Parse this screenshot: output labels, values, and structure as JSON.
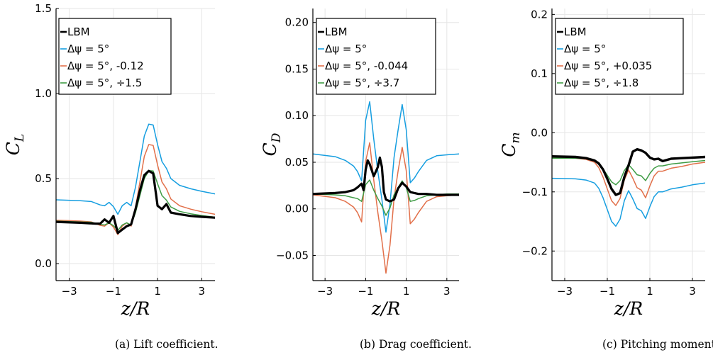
{
  "colors": {
    "LBM": "#000000",
    "blue": "#169ee0",
    "orange": "#e2704a",
    "green": "#3f9c45"
  },
  "legend": {
    "lbm": "LBM",
    "dpsi": "Δψ = 5°"
  },
  "chart_data": [
    {
      "type": "line",
      "caption": "(a) Lift coefficient.",
      "xlabel": "z/R",
      "ylabel": "C_L",
      "xlim": [
        -3.6,
        3.6
      ],
      "ylim": [
        -0.1,
        1.5
      ],
      "xticks": [
        -3,
        -1,
        1,
        3
      ],
      "yticks": [
        0.0,
        0.5,
        1.0,
        1.5
      ],
      "ytick_labels": [
        "0.0",
        "0.5",
        "1.0",
        "1.5"
      ],
      "grid": true,
      "legend_position": "top-left",
      "series": [
        {
          "name": "LBM",
          "color": "#000000",
          "suffix": "",
          "x": [
            -3.6,
            -2.5,
            -1.8,
            -1.6,
            -1.4,
            -1.2,
            -1.0,
            -0.8,
            -0.6,
            -0.4,
            -0.2,
            0.0,
            0.2,
            0.4,
            0.6,
            0.8,
            1.0,
            1.2,
            1.4,
            1.6,
            2.0,
            2.5,
            3.0,
            3.6
          ],
          "y": [
            0.245,
            0.24,
            0.235,
            0.235,
            0.26,
            0.24,
            0.28,
            0.18,
            0.2,
            0.22,
            0.23,
            0.32,
            0.43,
            0.52,
            0.545,
            0.53,
            0.34,
            0.32,
            0.35,
            0.3,
            0.29,
            0.28,
            0.275,
            0.27
          ]
        },
        {
          "name": "Δψ = 5°",
          "color": "#169ee0",
          "suffix": "",
          "x": [
            -3.6,
            -2.5,
            -2.0,
            -1.6,
            -1.4,
            -1.2,
            -1.0,
            -0.8,
            -0.6,
            -0.4,
            -0.2,
            0.0,
            0.2,
            0.4,
            0.6,
            0.8,
            1.0,
            1.2,
            1.4,
            1.6,
            2.0,
            2.5,
            3.0,
            3.6
          ],
          "y": [
            0.375,
            0.37,
            0.365,
            0.345,
            0.34,
            0.36,
            0.335,
            0.29,
            0.34,
            0.36,
            0.34,
            0.45,
            0.6,
            0.75,
            0.82,
            0.815,
            0.7,
            0.6,
            0.56,
            0.5,
            0.46,
            0.44,
            0.425,
            0.41
          ]
        },
        {
          "name": "Δψ = 5°",
          "color": "#e2704a",
          "suffix": ", -0.12",
          "x": [
            -3.6,
            -2.5,
            -2.0,
            -1.6,
            -1.4,
            -1.2,
            -1.0,
            -0.8,
            -0.6,
            -0.4,
            -0.2,
            0.0,
            0.2,
            0.4,
            0.6,
            0.8,
            1.0,
            1.2,
            1.4,
            1.6,
            2.0,
            2.5,
            3.0,
            3.6
          ],
          "y": [
            0.255,
            0.25,
            0.245,
            0.225,
            0.22,
            0.24,
            0.215,
            0.17,
            0.22,
            0.24,
            0.22,
            0.33,
            0.48,
            0.63,
            0.7,
            0.695,
            0.58,
            0.48,
            0.44,
            0.38,
            0.34,
            0.32,
            0.305,
            0.29
          ]
        },
        {
          "name": "Δψ = 5°",
          "color": "#3f9c45",
          "suffix": ", ÷1.5",
          "x": [
            -3.6,
            -2.5,
            -2.0,
            -1.6,
            -1.4,
            -1.2,
            -1.0,
            -0.8,
            -0.6,
            -0.4,
            -0.2,
            0.0,
            0.2,
            0.4,
            0.6,
            0.8,
            1.0,
            1.2,
            1.4,
            1.6,
            2.0,
            2.5,
            3.0,
            3.6
          ],
          "y": [
            0.25,
            0.245,
            0.243,
            0.23,
            0.227,
            0.24,
            0.223,
            0.195,
            0.227,
            0.24,
            0.227,
            0.3,
            0.4,
            0.5,
            0.547,
            0.545,
            0.47,
            0.4,
            0.373,
            0.333,
            0.307,
            0.293,
            0.283,
            0.273
          ]
        }
      ]
    },
    {
      "type": "line",
      "caption": "(b) Drag coefficient.",
      "xlabel": "z/R",
      "ylabel": "C_D",
      "xlim": [
        -3.6,
        3.6
      ],
      "ylim": [
        -0.077,
        0.215
      ],
      "xticks": [
        -3,
        -1,
        1,
        3
      ],
      "yticks": [
        -0.05,
        0.0,
        0.05,
        0.1,
        0.15,
        0.2
      ],
      "ytick_labels": [
        "−0.05",
        "0.00",
        "0.05",
        "0.10",
        "0.15",
        "0.20"
      ],
      "grid": true,
      "legend_position": "top-left",
      "series": [
        {
          "name": "LBM",
          "color": "#000000",
          "suffix": "",
          "x": [
            -3.6,
            -2.5,
            -2.0,
            -1.6,
            -1.4,
            -1.2,
            -1.1,
            -1.0,
            -0.9,
            -0.8,
            -0.6,
            -0.4,
            -0.3,
            -0.2,
            -0.1,
            0.0,
            0.2,
            0.4,
            0.6,
            0.8,
            1.0,
            1.2,
            1.4,
            1.6,
            2.0,
            2.5,
            3.0,
            3.6
          ],
          "y": [
            0.016,
            0.017,
            0.018,
            0.02,
            0.023,
            0.027,
            0.02,
            0.042,
            0.052,
            0.048,
            0.035,
            0.045,
            0.055,
            0.045,
            0.018,
            0.01,
            0.008,
            0.01,
            0.022,
            0.028,
            0.024,
            0.018,
            0.017,
            0.016,
            0.016,
            0.015,
            0.015,
            0.015
          ]
        },
        {
          "name": "Δψ = 5°",
          "color": "#169ee0",
          "suffix": "",
          "x": [
            -3.6,
            -2.5,
            -2.0,
            -1.6,
            -1.4,
            -1.2,
            -1.0,
            -0.8,
            -0.6,
            -0.4,
            -0.2,
            0.0,
            0.2,
            0.4,
            0.6,
            0.8,
            1.0,
            1.2,
            1.4,
            1.6,
            2.0,
            2.5,
            3.0,
            3.6
          ],
          "y": [
            0.059,
            0.056,
            0.052,
            0.046,
            0.04,
            0.03,
            0.095,
            0.115,
            0.075,
            0.04,
            0.01,
            -0.025,
            0.005,
            0.055,
            0.085,
            0.112,
            0.085,
            0.028,
            0.033,
            0.04,
            0.052,
            0.057,
            0.058,
            0.059
          ]
        },
        {
          "name": "Δψ = 5°",
          "color": "#e2704a",
          "suffix": ", -0.044",
          "x": [
            -3.6,
            -2.5,
            -2.0,
            -1.6,
            -1.4,
            -1.2,
            -1.0,
            -0.8,
            -0.6,
            -0.4,
            -0.2,
            0.0,
            0.2,
            0.4,
            0.6,
            0.8,
            1.0,
            1.2,
            1.4,
            1.6,
            2.0,
            2.5,
            3.0,
            3.6
          ],
          "y": [
            0.015,
            0.012,
            0.008,
            0.002,
            -0.004,
            -0.014,
            0.051,
            0.071,
            0.031,
            -0.004,
            -0.034,
            -0.069,
            -0.039,
            0.011,
            0.041,
            0.066,
            0.041,
            -0.016,
            -0.011,
            -0.004,
            0.008,
            0.013,
            0.014,
            0.015
          ]
        },
        {
          "name": "Δψ = 5°",
          "color": "#3f9c45",
          "suffix": ", ÷3.7",
          "x": [
            -3.6,
            -2.5,
            -2.0,
            -1.6,
            -1.4,
            -1.2,
            -1.0,
            -0.8,
            -0.6,
            -0.4,
            -0.2,
            0.0,
            0.2,
            0.4,
            0.6,
            0.8,
            1.0,
            1.2,
            1.4,
            1.6,
            2.0,
            2.5,
            3.0,
            3.6
          ],
          "y": [
            0.016,
            0.015,
            0.014,
            0.012,
            0.011,
            0.008,
            0.026,
            0.031,
            0.02,
            0.011,
            0.003,
            -0.007,
            0.001,
            0.015,
            0.023,
            0.03,
            0.023,
            0.008,
            0.009,
            0.011,
            0.014,
            0.015,
            0.016,
            0.016
          ]
        }
      ]
    },
    {
      "type": "line",
      "caption": "(c) Pitching moment coefficient.",
      "xlabel": "z/R",
      "ylabel": "C_m",
      "xlim": [
        -3.6,
        3.6
      ],
      "ylim": [
        -0.25,
        0.21
      ],
      "xticks": [
        -3,
        -1,
        1,
        3
      ],
      "yticks": [
        -0.2,
        -0.1,
        0.0,
        0.1,
        0.2
      ],
      "ytick_labels": [
        "−0.2",
        "−0.1",
        "0.0",
        "0.1",
        "0.2"
      ],
      "grid": true,
      "legend_position": "top-left",
      "series": [
        {
          "name": "LBM",
          "color": "#000000",
          "suffix": "",
          "x": [
            -3.6,
            -2.5,
            -2.0,
            -1.6,
            -1.4,
            -1.2,
            -1.0,
            -0.8,
            -0.6,
            -0.4,
            -0.2,
            0.0,
            0.2,
            0.4,
            0.6,
            0.8,
            1.0,
            1.2,
            1.4,
            1.6,
            2.0,
            2.5,
            3.0,
            3.6
          ],
          "y": [
            -0.04,
            -0.041,
            -0.043,
            -0.047,
            -0.052,
            -0.062,
            -0.078,
            -0.095,
            -0.105,
            -0.102,
            -0.075,
            -0.055,
            -0.032,
            -0.028,
            -0.03,
            -0.034,
            -0.042,
            -0.045,
            -0.044,
            -0.048,
            -0.044,
            -0.043,
            -0.042,
            -0.041
          ]
        },
        {
          "name": "Δψ = 5°",
          "color": "#169ee0",
          "suffix": "",
          "x": [
            -3.6,
            -2.5,
            -2.0,
            -1.6,
            -1.4,
            -1.2,
            -1.0,
            -0.8,
            -0.6,
            -0.4,
            -0.2,
            0.0,
            0.2,
            0.4,
            0.6,
            0.8,
            1.0,
            1.2,
            1.4,
            1.6,
            2.0,
            2.5,
            3.0,
            3.6
          ],
          "y": [
            -0.077,
            -0.078,
            -0.08,
            -0.085,
            -0.094,
            -0.11,
            -0.13,
            -0.15,
            -0.158,
            -0.146,
            -0.115,
            -0.098,
            -0.112,
            -0.128,
            -0.132,
            -0.145,
            -0.125,
            -0.108,
            -0.1,
            -0.1,
            -0.095,
            -0.092,
            -0.088,
            -0.085
          ]
        },
        {
          "name": "Δψ = 5°",
          "color": "#e2704a",
          "suffix": ", +0.035",
          "x": [
            -3.6,
            -2.5,
            -2.0,
            -1.6,
            -1.4,
            -1.2,
            -1.0,
            -0.8,
            -0.6,
            -0.4,
            -0.2,
            0.0,
            0.2,
            0.4,
            0.6,
            0.8,
            1.0,
            1.2,
            1.4,
            1.6,
            2.0,
            2.5,
            3.0,
            3.6
          ],
          "y": [
            -0.042,
            -0.043,
            -0.045,
            -0.05,
            -0.059,
            -0.075,
            -0.095,
            -0.115,
            -0.123,
            -0.111,
            -0.08,
            -0.063,
            -0.077,
            -0.093,
            -0.097,
            -0.11,
            -0.09,
            -0.073,
            -0.065,
            -0.065,
            -0.06,
            -0.057,
            -0.053,
            -0.05
          ]
        },
        {
          "name": "Δψ = 5°",
          "color": "#3f9c45",
          "suffix": ", ÷1.8",
          "x": [
            -3.6,
            -2.5,
            -2.0,
            -1.6,
            -1.4,
            -1.2,
            -1.0,
            -0.8,
            -0.6,
            -0.4,
            -0.2,
            0.0,
            0.2,
            0.4,
            0.6,
            0.8,
            1.0,
            1.2,
            1.4,
            1.6,
            2.0,
            2.5,
            3.0,
            3.6
          ],
          "y": [
            -0.043,
            -0.043,
            -0.044,
            -0.047,
            -0.052,
            -0.061,
            -0.072,
            -0.083,
            -0.088,
            -0.081,
            -0.064,
            -0.054,
            -0.062,
            -0.071,
            -0.073,
            -0.081,
            -0.069,
            -0.06,
            -0.056,
            -0.056,
            -0.053,
            -0.051,
            -0.049,
            -0.047
          ]
        }
      ]
    }
  ]
}
